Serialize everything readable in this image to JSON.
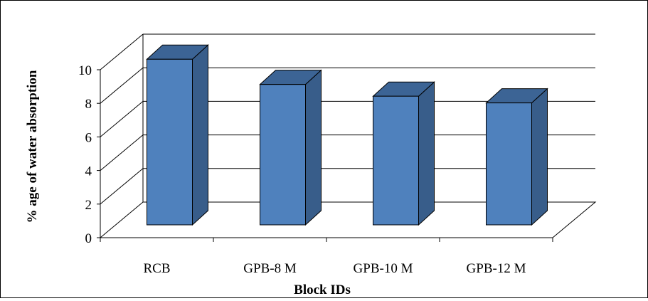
{
  "chart_data": {
    "type": "bar",
    "categories": [
      "RCB",
      "GPB-8 M",
      "GPB-10 M",
      "GPB-12 M"
    ],
    "values": [
      10.2,
      8.7,
      8.0,
      7.6
    ],
    "title": "",
    "xlabel": "Block IDs",
    "ylabel": "% age of water absorption",
    "ylim": [
      0,
      10
    ],
    "yticks": [
      "0",
      "2",
      "4",
      "6",
      "8",
      "10"
    ],
    "grid": true,
    "legend": "none",
    "three_d": true,
    "colors": {
      "bar_front": "#4F81BD",
      "bar_side": "#385D8A",
      "bar_top": "#3C6495",
      "grid": "#000000"
    }
  }
}
